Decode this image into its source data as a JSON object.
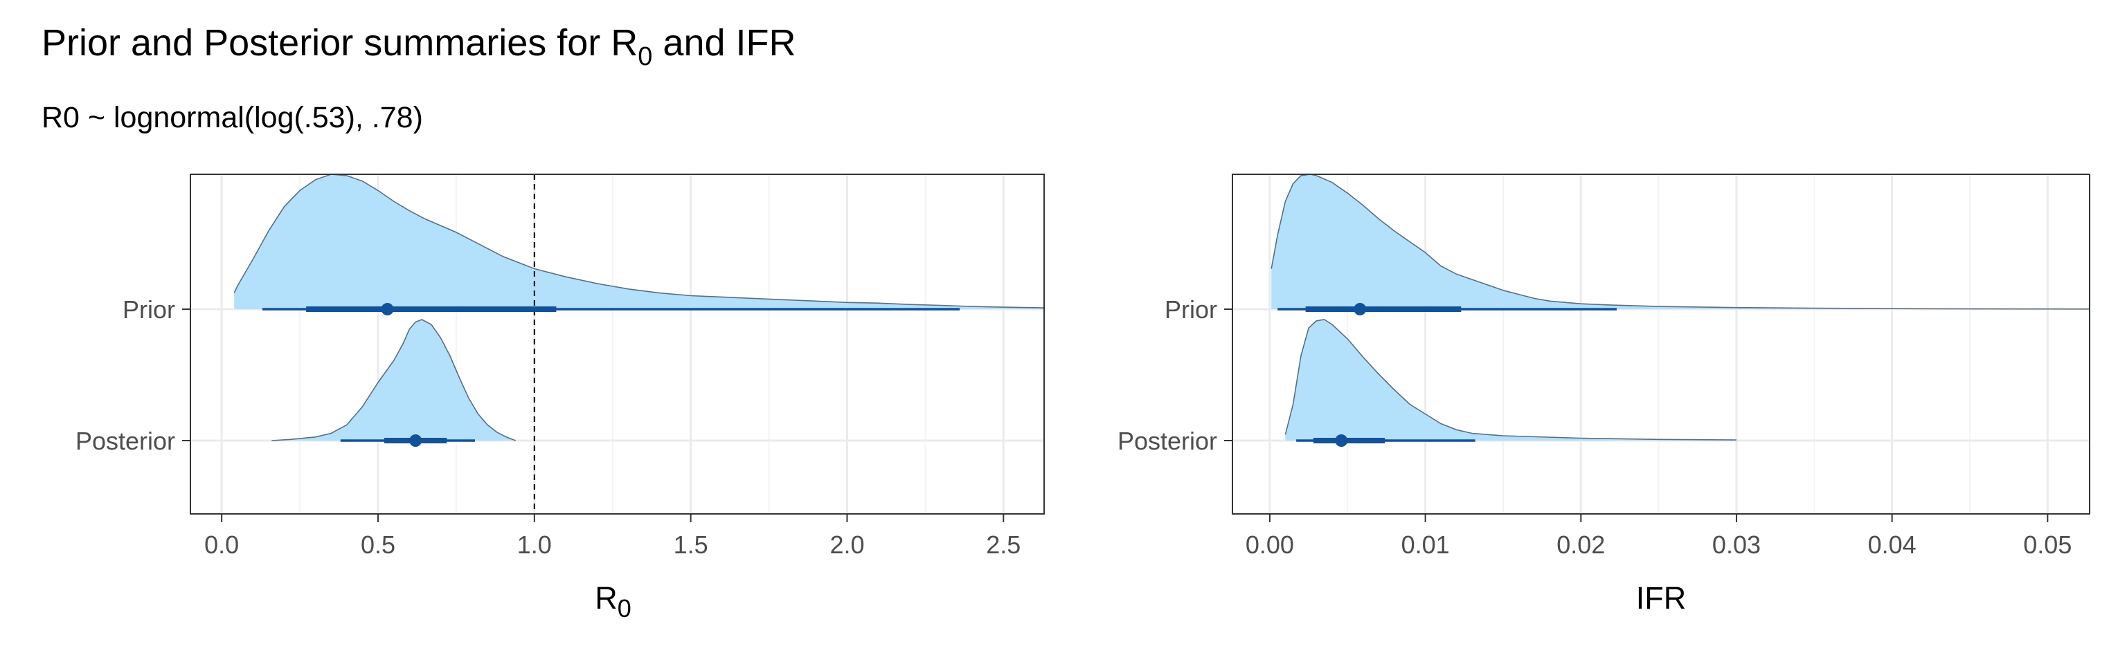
{
  "colors": {
    "density_fill": "#b3e0fb",
    "density_line": "#5a6e80",
    "interval": "#11529b",
    "grid_major": "#ebebeb",
    "grid_minor": "#f4f4f4",
    "panel_border": "#333333",
    "tick_text": "#4d4d4d"
  },
  "title": {
    "prefix": "Prior and Posterior summaries for R",
    "subscript": "0",
    "suffix": " and IFR"
  },
  "subtitle": "R0 ~ lognormal(log(.53), .78)",
  "chart_data": [
    {
      "type": "halfeye",
      "xlabel": {
        "main": "R",
        "subscript": "0"
      },
      "xlim": [
        -0.1,
        2.63
      ],
      "xticks": [
        0.0,
        0.5,
        1.0,
        1.5,
        2.0,
        2.5
      ],
      "xtick_labels": [
        "0.0",
        "0.5",
        "1.0",
        "1.5",
        "2.0",
        "2.5"
      ],
      "reference_line": {
        "x": 1.0,
        "style": "dashed"
      },
      "categories": [
        "Prior",
        "Posterior"
      ],
      "series": [
        {
          "name": "Prior",
          "point": 0.53,
          "interval_66": [
            0.27,
            1.07
          ],
          "interval_95": [
            0.13,
            2.36
          ],
          "density": [
            [
              0.04,
              0.12
            ],
            [
              0.05,
              0.17
            ],
            [
              0.1,
              0.37
            ],
            [
              0.15,
              0.58
            ],
            [
              0.2,
              0.76
            ],
            [
              0.25,
              0.88
            ],
            [
              0.3,
              0.96
            ],
            [
              0.35,
              1.0
            ],
            [
              0.4,
              0.99
            ],
            [
              0.45,
              0.95
            ],
            [
              0.5,
              0.88
            ],
            [
              0.55,
              0.8
            ],
            [
              0.6,
              0.73
            ],
            [
              0.65,
              0.67
            ],
            [
              0.7,
              0.62
            ],
            [
              0.75,
              0.57
            ],
            [
              0.8,
              0.51
            ],
            [
              0.9,
              0.39
            ],
            [
              1.0,
              0.3
            ],
            [
              1.1,
              0.24
            ],
            [
              1.2,
              0.19
            ],
            [
              1.3,
              0.15
            ],
            [
              1.4,
              0.12
            ],
            [
              1.5,
              0.1
            ],
            [
              1.6,
              0.09
            ],
            [
              1.7,
              0.08
            ],
            [
              1.8,
              0.07
            ],
            [
              1.9,
              0.06
            ],
            [
              2.0,
              0.05
            ],
            [
              2.1,
              0.045
            ],
            [
              2.2,
              0.035
            ],
            [
              2.3,
              0.028
            ],
            [
              2.4,
              0.02
            ],
            [
              2.5,
              0.015
            ],
            [
              2.63,
              0.01
            ]
          ]
        },
        {
          "name": "Posterior",
          "point": 0.62,
          "interval_66": [
            0.52,
            0.72
          ],
          "interval_95": [
            0.38,
            0.81
          ],
          "density": [
            [
              0.16,
              0.0
            ],
            [
              0.22,
              0.01
            ],
            [
              0.3,
              0.03
            ],
            [
              0.35,
              0.06
            ],
            [
              0.4,
              0.13
            ],
            [
              0.45,
              0.28
            ],
            [
              0.5,
              0.48
            ],
            [
              0.55,
              0.66
            ],
            [
              0.58,
              0.8
            ],
            [
              0.6,
              0.92
            ],
            [
              0.62,
              0.98
            ],
            [
              0.64,
              1.0
            ],
            [
              0.67,
              0.96
            ],
            [
              0.7,
              0.85
            ],
            [
              0.73,
              0.7
            ],
            [
              0.76,
              0.52
            ],
            [
              0.79,
              0.35
            ],
            [
              0.82,
              0.22
            ],
            [
              0.85,
              0.13
            ],
            [
              0.88,
              0.07
            ],
            [
              0.91,
              0.03
            ],
            [
              0.94,
              0.0
            ]
          ]
        }
      ]
    },
    {
      "type": "halfeye",
      "xlabel": {
        "main": "IFR",
        "subscript": ""
      },
      "xlim": [
        -0.0024,
        0.0527
      ],
      "xticks": [
        0.0,
        0.01,
        0.02,
        0.03,
        0.04,
        0.05
      ],
      "xtick_labels": [
        "0.00",
        "0.01",
        "0.02",
        "0.03",
        "0.04",
        "0.05"
      ],
      "categories": [
        "Prior",
        "Posterior"
      ],
      "series": [
        {
          "name": "Prior",
          "point": 0.0058,
          "interval_66": [
            0.0023,
            0.0123
          ],
          "interval_95": [
            0.0005,
            0.0223
          ],
          "density": [
            [
              0.0001,
              0.3
            ],
            [
              0.0005,
              0.55
            ],
            [
              0.001,
              0.8
            ],
            [
              0.0015,
              0.93
            ],
            [
              0.002,
              0.99
            ],
            [
              0.0026,
              1.0
            ],
            [
              0.003,
              0.99
            ],
            [
              0.004,
              0.94
            ],
            [
              0.005,
              0.86
            ],
            [
              0.006,
              0.77
            ],
            [
              0.007,
              0.67
            ],
            [
              0.008,
              0.58
            ],
            [
              0.009,
              0.5
            ],
            [
              0.01,
              0.42
            ],
            [
              0.011,
              0.32
            ],
            [
              0.012,
              0.26
            ],
            [
              0.013,
              0.22
            ],
            [
              0.014,
              0.18
            ],
            [
              0.015,
              0.14
            ],
            [
              0.016,
              0.11
            ],
            [
              0.017,
              0.08
            ],
            [
              0.018,
              0.06
            ],
            [
              0.02,
              0.04
            ],
            [
              0.022,
              0.03
            ],
            [
              0.025,
              0.02
            ],
            [
              0.03,
              0.012
            ],
            [
              0.035,
              0.007
            ],
            [
              0.04,
              0.004
            ],
            [
              0.045,
              0.002
            ],
            [
              0.0527,
              0.001
            ]
          ]
        },
        {
          "name": "Posterior",
          "point": 0.0046,
          "interval_66": [
            0.0028,
            0.0074
          ],
          "interval_95": [
            0.0017,
            0.0132
          ],
          "density": [
            [
              0.001,
              0.05
            ],
            [
              0.0015,
              0.3
            ],
            [
              0.002,
              0.7
            ],
            [
              0.0025,
              0.93
            ],
            [
              0.003,
              0.99
            ],
            [
              0.0035,
              1.0
            ],
            [
              0.004,
              0.96
            ],
            [
              0.005,
              0.84
            ],
            [
              0.006,
              0.69
            ],
            [
              0.007,
              0.55
            ],
            [
              0.008,
              0.42
            ],
            [
              0.009,
              0.3
            ],
            [
              0.01,
              0.22
            ],
            [
              0.011,
              0.14
            ],
            [
              0.012,
              0.09
            ],
            [
              0.013,
              0.06
            ],
            [
              0.015,
              0.04
            ],
            [
              0.02,
              0.02
            ],
            [
              0.025,
              0.01
            ],
            [
              0.03,
              0.005
            ]
          ]
        }
      ]
    }
  ]
}
